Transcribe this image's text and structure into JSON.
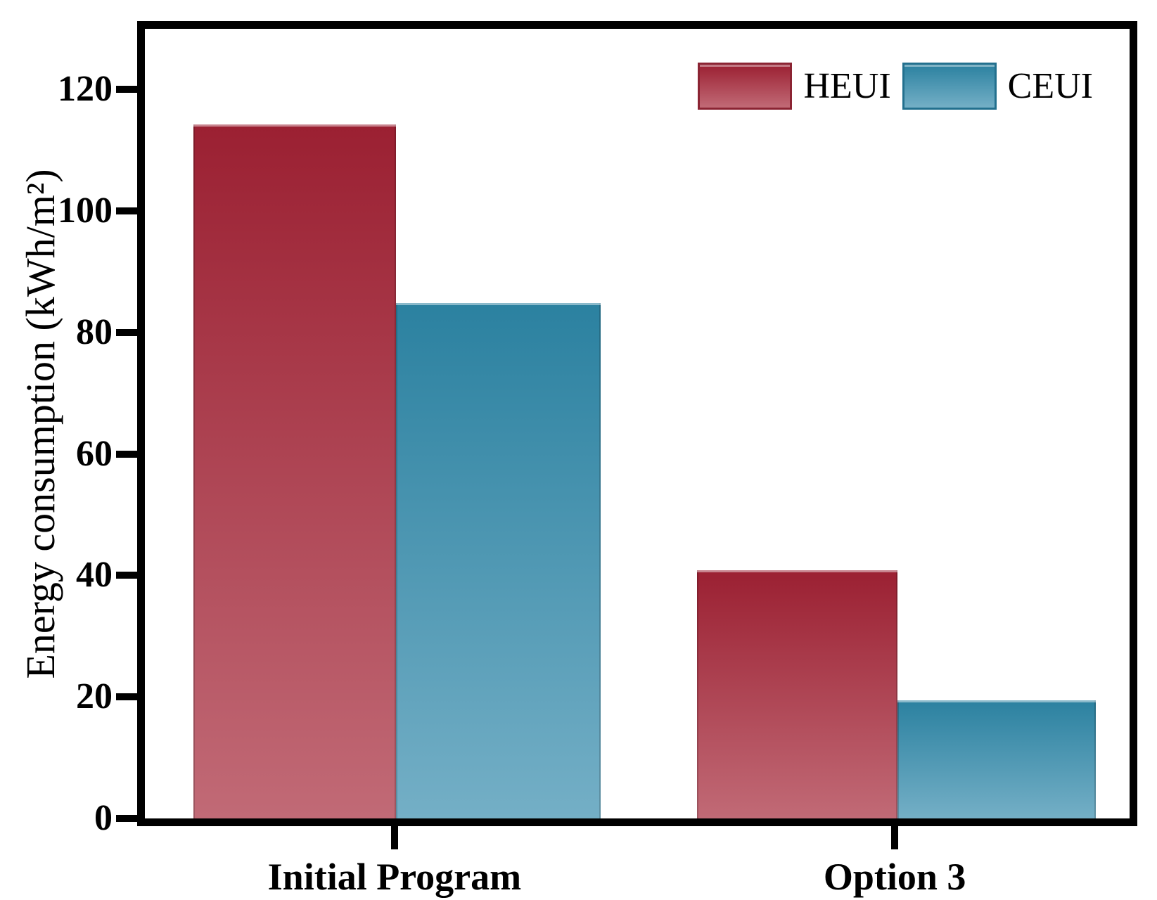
{
  "chart_data": {
    "type": "bar",
    "title": "",
    "categories": [
      "Initial Program",
      "Option 3"
    ],
    "series": [
      {
        "name": "HEUI",
        "values": [
          114.3,
          40.9
        ],
        "color_top": "#9B2032",
        "color_bottom": "#C16A76",
        "edge_color": "#8B2433"
      },
      {
        "name": "CEUI",
        "values": [
          84.8,
          19.4
        ],
        "color_top": "#2B81A0",
        "color_bottom": "#74AFC6",
        "edge_color": "#23708E"
      }
    ],
    "xlabel": "",
    "ylabel": "Energy consumption (kWh/m²)",
    "yticks": [
      0,
      20,
      40,
      60,
      80,
      100,
      120
    ],
    "ylim": [
      0,
      130
    ],
    "grid": false,
    "legend_position": "top-right-inside",
    "frame_color": "#000000",
    "background_color": "#FFFFFF"
  }
}
